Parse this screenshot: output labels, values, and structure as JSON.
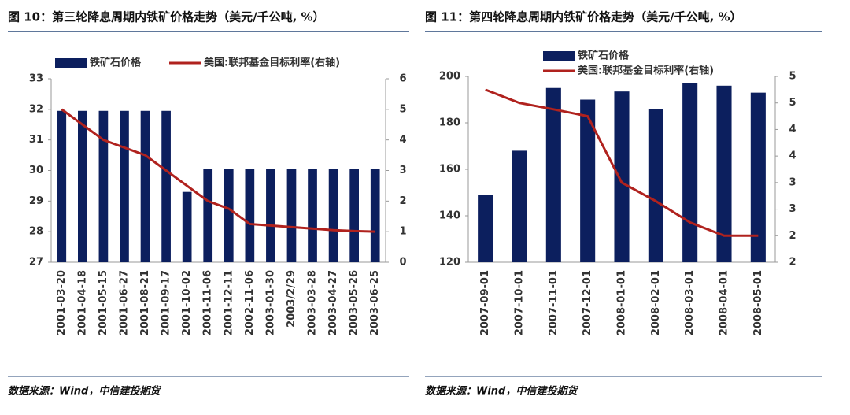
{
  "chart_data": [
    {
      "type": "bar-line",
      "title": "图 10：第三轮降息周期内铁矿价格走势（美元/千公吨, %）",
      "source": "数据来源：Wind，中信建投期货",
      "categories": [
        "2001-03-20",
        "2001-04-18",
        "2001-05-15",
        "2001-06-27",
        "2001-08-21",
        "2001-09-17",
        "2001-10-02",
        "2001-11-06",
        "2001-12-11",
        "2002-11-06",
        "2003-01-30",
        "2003/2/29",
        "2003-03-28",
        "2003-04-27",
        "2003-05-26",
        "2003-06-25"
      ],
      "series": [
        {
          "name": "铁矿石价格",
          "type": "bar",
          "color": "#0c1f5e",
          "values": [
            31.95,
            31.95,
            31.95,
            31.95,
            31.95,
            31.95,
            29.3,
            30.05,
            30.05,
            30.05,
            30.05,
            30.05,
            30.05,
            30.05,
            30.05,
            30.05
          ]
        },
        {
          "name": "美国:联邦基金目标利率(右轴)",
          "type": "line",
          "axis": "y2",
          "color": "#b0221e",
          "values": [
            5,
            4.5,
            4,
            3.75,
            3.5,
            3,
            2.5,
            2,
            1.75,
            1.25,
            1.2,
            1.15,
            1.1,
            1.05,
            1.02,
            1
          ]
        }
      ],
      "ylim": [
        27,
        33
      ],
      "yticks": [
        27,
        28,
        29,
        30,
        31,
        32,
        33
      ],
      "y2lim": [
        0,
        6
      ],
      "y2ticks": [
        0,
        1,
        2,
        3,
        4,
        5,
        6
      ]
    },
    {
      "type": "bar-line",
      "title": "图 11：第四轮降息周期内铁矿价格走势（美元/千公吨, %）",
      "source": "数据来源：Wind，中信建投期货",
      "categories": [
        "2007-09-01",
        "2007-10-01",
        "2007-11-01",
        "2007-12-01",
        "2008-01-01",
        "2008-02-01",
        "2008-03-01",
        "2008-04-01",
        "2008-05-01"
      ],
      "series": [
        {
          "name": "铁矿石价格",
          "type": "bar",
          "color": "#0c1f5e",
          "values": [
            149,
            168,
            195,
            190,
            193.5,
            186,
            197,
            196,
            193
          ]
        },
        {
          "name": "美国:联邦基金目标利率(右轴)",
          "type": "line",
          "axis": "y2",
          "color": "#b0221e",
          "values": [
            4.75,
            4.5,
            4.38,
            4.25,
            3,
            2.65,
            2.25,
            2,
            2
          ]
        }
      ],
      "ylim": [
        120,
        200
      ],
      "yticks": [
        120,
        140,
        160,
        180,
        200
      ],
      "y2lim": [
        1.5,
        5
      ],
      "y2ticks": [
        5,
        {
          "value": 4.5,
          "label": "5"
        },
        4,
        {
          "value": 3.5,
          "label": "4"
        },
        3,
        {
          "value": 2.5,
          "label": "3"
        },
        2,
        {
          "value": 1.5,
          "label": "2"
        }
      ]
    }
  ]
}
